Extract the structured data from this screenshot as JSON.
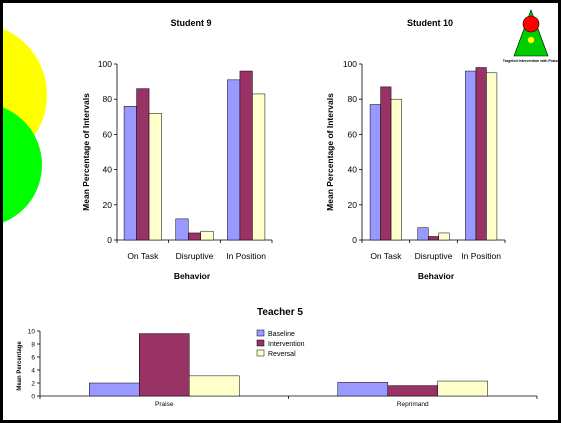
{
  "slide": {
    "logo_caption": "Targeted Intervention with Praise",
    "colors": {
      "border": "#000000",
      "yellow_circle": "#ffff00",
      "green_circle": "#00ff00",
      "logo_triangle": "#00cc00",
      "logo_disc": "#ff0000",
      "logo_inner": "#ffff00"
    }
  },
  "chart_data": [
    {
      "type": "bar",
      "title": "Student 9",
      "xlabel": "Behavior",
      "ylabel": "Mean Percentage of Intervals",
      "ylim": [
        0,
        100
      ],
      "yticks": [
        0,
        20,
        40,
        60,
        80,
        100
      ],
      "grid": false,
      "categories": [
        "On Task",
        "Disruptive",
        "In Position"
      ],
      "series": [
        {
          "color": "#9999ff",
          "values": [
            76,
            12,
            91
          ]
        },
        {
          "color": "#993366",
          "values": [
            86,
            4,
            96
          ]
        },
        {
          "color": "#ffffcc",
          "values": [
            72,
            5,
            83
          ]
        }
      ]
    },
    {
      "type": "bar",
      "title": "Student 10",
      "xlabel": "Behavior",
      "ylabel": "Mean Percentage of Intervals",
      "ylim": [
        0,
        100
      ],
      "yticks": [
        0,
        20,
        40,
        60,
        80,
        100
      ],
      "grid": false,
      "categories": [
        "On Task",
        "Disruptive",
        "In Position"
      ],
      "series": [
        {
          "color": "#9999ff",
          "values": [
            77,
            7,
            96
          ]
        },
        {
          "color": "#993366",
          "values": [
            87,
            2,
            98
          ]
        },
        {
          "color": "#ffffcc",
          "values": [
            80,
            4,
            95
          ]
        }
      ]
    },
    {
      "type": "bar",
      "title": "Teacher 5",
      "xlabel": "",
      "ylabel": "Mean Percentage",
      "ylim": [
        0,
        10
      ],
      "yticks": [
        0,
        2,
        4,
        6,
        8,
        10
      ],
      "grid": false,
      "legend": "top-right",
      "categories": [
        "Praise",
        "Reprimand"
      ],
      "series": [
        {
          "name": "Baseline",
          "color": "#9999ff",
          "values": [
            2,
            2.1
          ]
        },
        {
          "name": "Intervention",
          "color": "#993366",
          "values": [
            9.6,
            1.6
          ]
        },
        {
          "name": "Reversal",
          "color": "#ffffcc",
          "values": [
            3.1,
            2.3
          ]
        }
      ]
    }
  ]
}
